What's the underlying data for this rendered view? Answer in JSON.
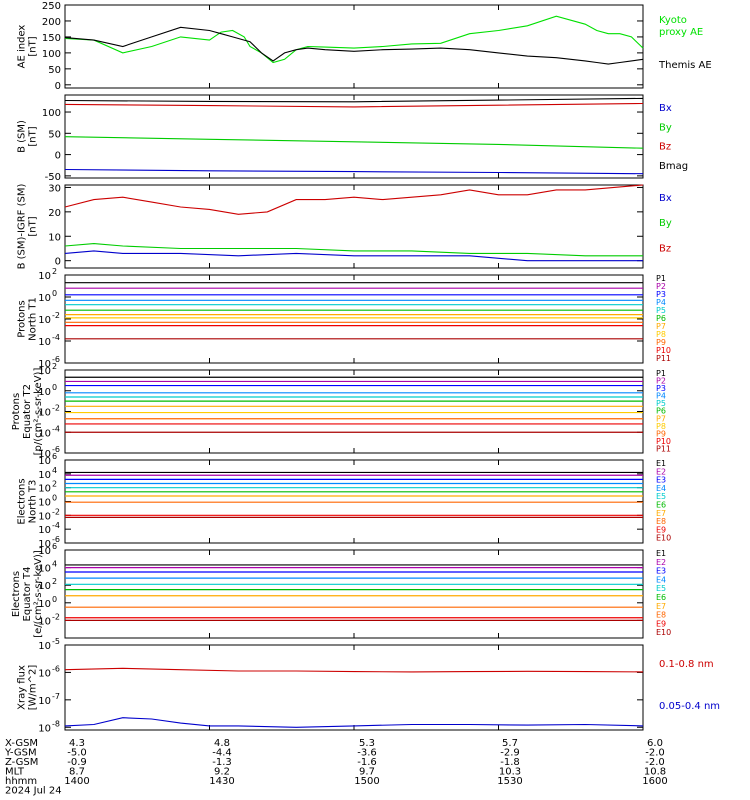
{
  "chart_data": [
    {
      "type": "line",
      "ylabel": [
        "AE index",
        "[nT]"
      ],
      "ylim": [
        -10,
        250
      ],
      "yticks": [
        0,
        50,
        100,
        150,
        200,
        250
      ],
      "tick_labels": [
        "0",
        "50",
        "100",
        "150",
        "200",
        "250"
      ],
      "legend": [
        {
          "text": "Kyoto",
          "color": "#00e000"
        },
        {
          "text": "proxy AE",
          "color": "#00e000"
        },
        {
          "text": "Themis AE",
          "color": "#000000"
        }
      ],
      "series": [
        {
          "name": "Kyoto proxy AE",
          "color": "#00e000",
          "x": [
            0,
            5,
            10,
            15,
            20,
            25,
            27,
            29,
            31,
            32,
            34,
            36,
            38,
            40,
            42,
            45,
            50,
            55,
            60,
            65,
            70,
            75,
            80,
            85,
            90,
            92,
            94,
            96,
            98,
            100
          ],
          "y": [
            145,
            140,
            100,
            120,
            150,
            140,
            165,
            170,
            150,
            120,
            100,
            70,
            80,
            110,
            120,
            118,
            115,
            120,
            128,
            130,
            160,
            170,
            185,
            215,
            190,
            170,
            160,
            160,
            150,
            115
          ]
        },
        {
          "name": "Themis AE",
          "color": "#000000",
          "x": [
            0,
            5,
            10,
            15,
            20,
            25,
            27,
            29,
            31,
            32,
            34,
            36,
            38,
            40,
            42,
            45,
            50,
            55,
            60,
            65,
            70,
            75,
            80,
            85,
            90,
            92,
            94,
            96,
            98,
            100
          ],
          "y": [
            148,
            140,
            120,
            150,
            180,
            170,
            160,
            150,
            140,
            135,
            100,
            75,
            100,
            110,
            115,
            110,
            105,
            110,
            112,
            115,
            110,
            100,
            90,
            85,
            75,
            70,
            65,
            70,
            75,
            80
          ]
        }
      ]
    },
    {
      "type": "line",
      "ylabel": [
        "B (SM)",
        "[nT]"
      ],
      "ylim": [
        -55,
        140
      ],
      "yticks": [
        -50,
        0,
        50,
        100
      ],
      "tick_labels": [
        "-50",
        "0",
        "50",
        "100"
      ],
      "legend": [
        {
          "text": "Bx",
          "color": "#0000cc"
        },
        {
          "text": "By",
          "color": "#00cc00"
        },
        {
          "text": "Bz",
          "color": "#cc0000"
        },
        {
          "text": "Bmag",
          "color": "#000000"
        }
      ],
      "series": [
        {
          "name": "Bx",
          "color": "#0000cc",
          "x": [
            0,
            25,
            50,
            75,
            100
          ],
          "y": [
            -35,
            -38,
            -40,
            -42,
            -45
          ]
        },
        {
          "name": "By",
          "color": "#00cc00",
          "x": [
            0,
            25,
            50,
            75,
            100
          ],
          "y": [
            42,
            36,
            30,
            24,
            15
          ]
        },
        {
          "name": "Bz",
          "color": "#cc0000",
          "x": [
            0,
            25,
            50,
            75,
            100
          ],
          "y": [
            118,
            115,
            112,
            116,
            120
          ]
        },
        {
          "name": "Bmag",
          "color": "#000000",
          "x": [
            0,
            25,
            50,
            75,
            100
          ],
          "y": [
            127,
            125,
            124,
            128,
            132
          ]
        }
      ]
    },
    {
      "type": "line",
      "ylabel": [
        "B (SM)-IGRF (SM)",
        "[nT]"
      ],
      "ylim": [
        -3,
        31
      ],
      "yticks": [
        0,
        10,
        20,
        30
      ],
      "tick_labels": [
        "0",
        "10",
        "20",
        "30"
      ],
      "legend": [
        {
          "text": "Bx",
          "color": "#0000cc"
        },
        {
          "text": "By",
          "color": "#00cc00"
        },
        {
          "text": "Bz",
          "color": "#cc0000"
        }
      ],
      "series": [
        {
          "name": "Bx",
          "color": "#0000cc",
          "x": [
            0,
            5,
            10,
            20,
            30,
            40,
            50,
            60,
            70,
            80,
            90,
            100
          ],
          "y": [
            3,
            4,
            3,
            3,
            2,
            3,
            2,
            2,
            2,
            0,
            0,
            0
          ]
        },
        {
          "name": "By",
          "color": "#00cc00",
          "x": [
            0,
            5,
            10,
            20,
            30,
            40,
            50,
            60,
            70,
            80,
            90,
            100
          ],
          "y": [
            6,
            7,
            6,
            5,
            5,
            5,
            4,
            4,
            3,
            3,
            2,
            2
          ]
        },
        {
          "name": "Bz",
          "color": "#cc0000",
          "x": [
            0,
            5,
            10,
            15,
            20,
            25,
            30,
            35,
            40,
            45,
            50,
            55,
            60,
            65,
            70,
            75,
            80,
            85,
            90,
            95,
            100
          ],
          "y": [
            22,
            25,
            26,
            24,
            22,
            21,
            19,
            20,
            25,
            25,
            26,
            25,
            26,
            27,
            29,
            27,
            27,
            29,
            29,
            30,
            31
          ]
        }
      ]
    },
    {
      "type": "line",
      "ylabel": [
        "Protons",
        "North T1"
      ],
      "ylog": true,
      "ylim": [
        -6,
        2
      ],
      "yticks": [
        -6,
        -4,
        -2,
        0,
        2
      ],
      "tick_labels": [
        "10",
        "10",
        "10",
        "10",
        "10"
      ],
      "tick_sups": [
        "-6",
        "-4",
        "-2",
        "0",
        "2"
      ],
      "legend": [
        "P1",
        "P2",
        "P3",
        "P4",
        "P5",
        "P6",
        "P7",
        "P8",
        "P9",
        "P10",
        "P11"
      ],
      "colors": [
        "#000000",
        "#aa00aa",
        "#0000ff",
        "#0088ff",
        "#00cccc",
        "#00bb00",
        "#ffaa00",
        "#ffcc00",
        "#ff6600",
        "#ee0000",
        "#aa0000"
      ],
      "levels": [
        1.3,
        0.8,
        0.2,
        -0.3,
        -0.7,
        -1.2,
        -1.6,
        -1.9,
        -2.3,
        -2.6,
        -3.8
      ]
    },
    {
      "type": "line",
      "ylabel": [
        "Protons",
        "Equator T2",
        "[p/(cm²-s-sr-keV)]"
      ],
      "ylog": true,
      "ylim": [
        -6,
        2
      ],
      "yticks": [
        -6,
        -4,
        -2,
        0,
        2
      ],
      "tick_labels": [
        "10",
        "10",
        "10",
        "10",
        "10"
      ],
      "tick_sups": [
        "-6",
        "-4",
        "-2",
        "0",
        "2"
      ],
      "legend": [
        "P1",
        "P2",
        "P3",
        "P4",
        "P5",
        "P6",
        "P7",
        "P8",
        "P9",
        "P10",
        "P11"
      ],
      "colors": [
        "#000000",
        "#aa00aa",
        "#0000ff",
        "#0088ff",
        "#00cccc",
        "#00bb00",
        "#ffaa00",
        "#ffcc00",
        "#ff6600",
        "#ee0000",
        "#aa0000"
      ],
      "levels": [
        1.3,
        0.9,
        0.5,
        -0.2,
        -0.6,
        -1.0,
        -1.5,
        -2.1,
        -2.7,
        -3.2,
        -4.0
      ]
    },
    {
      "type": "line",
      "ylabel": [
        "Electrons",
        "North T3"
      ],
      "ylog": true,
      "ylim": [
        -6,
        6
      ],
      "yticks": [
        -6,
        -4,
        -2,
        0,
        2,
        4,
        6
      ],
      "tick_labels": [
        "10",
        "10",
        "10",
        "10",
        "10",
        "10",
        "10"
      ],
      "tick_sups": [
        "-6",
        "-4",
        "-2",
        "0",
        "2",
        "4",
        "6"
      ],
      "legend": [
        "E1",
        "E2",
        "E3",
        "E4",
        "E5",
        "E6",
        "E7",
        "E8",
        "E9",
        "E10"
      ],
      "colors": [
        "#000000",
        "#aa00aa",
        "#0000ff",
        "#0088ff",
        "#00cccc",
        "#00bb00",
        "#ffaa00",
        "#ff6600",
        "#ee0000",
        "#aa0000"
      ],
      "levels": [
        4.2,
        3.8,
        3.2,
        2.6,
        2.0,
        1.4,
        0.8,
        -0.1,
        -2.0,
        -2.3
      ]
    },
    {
      "type": "line",
      "ylabel": [
        "Electrons",
        "Equator T4",
        "[e/(cm²-s-sr-keV)]"
      ],
      "ylog": true,
      "ylim": [
        -4,
        6
      ],
      "yticks": [
        -2,
        0,
        2,
        4,
        6
      ],
      "tick_labels": [
        "10",
        "10",
        "10",
        "10",
        "10"
      ],
      "tick_sups": [
        "-2",
        "0",
        "2",
        "4",
        "6"
      ],
      "legend": [
        "E1",
        "E2",
        "E3",
        "E4",
        "E5",
        "E6",
        "E7",
        "E8",
        "E9",
        "E10"
      ],
      "colors": [
        "#000000",
        "#aa00aa",
        "#0000ff",
        "#0088ff",
        "#00cccc",
        "#00bb00",
        "#ffaa00",
        "#ff6600",
        "#ee0000",
        "#aa0000"
      ],
      "levels": [
        4.3,
        4.0,
        3.5,
        2.8,
        2.1,
        1.5,
        0.8,
        -0.5,
        -1.7,
        -2.0
      ]
    },
    {
      "type": "line",
      "ylabel": [
        "Xray flux",
        "[W/m^2]"
      ],
      "ylog": true,
      "ylim": [
        -8.1,
        -5
      ],
      "yticks": [
        -8,
        -7,
        -6,
        -5
      ],
      "tick_labels": [
        "10",
        "10",
        "10",
        "10"
      ],
      "tick_sups": [
        "-8",
        "-7",
        "-6",
        "-5"
      ],
      "legend": [
        {
          "text": "0.1-0.8 nm",
          "color": "#cc0000"
        },
        {
          "text": "0.05-0.4 nm",
          "color": "#0000cc"
        }
      ],
      "series": [
        {
          "name": "0.1-0.8 nm",
          "color": "#cc0000",
          "x": [
            0,
            10,
            20,
            30,
            40,
            50,
            60,
            70,
            80,
            90,
            100
          ],
          "y": [
            -5.9,
            -5.85,
            -5.9,
            -5.95,
            -5.95,
            -5.97,
            -5.98,
            -5.97,
            -5.96,
            -5.97,
            -5.98
          ]
        },
        {
          "name": "0.05-0.4 nm",
          "color": "#0000cc",
          "x": [
            0,
            5,
            10,
            15,
            20,
            25,
            30,
            40,
            50,
            60,
            70,
            80,
            90,
            100
          ],
          "y": [
            -7.95,
            -7.9,
            -7.65,
            -7.7,
            -7.85,
            -7.95,
            -7.95,
            -8.0,
            -7.95,
            -7.9,
            -7.9,
            -7.92,
            -7.9,
            -7.95
          ]
        }
      ]
    }
  ],
  "footer": {
    "rows": [
      {
        "label": "X-GSM",
        "values": [
          "4.3",
          "4.8",
          "5.3",
          "5.7",
          "6.0"
        ]
      },
      {
        "label": "Y-GSM",
        "values": [
          "-5.0",
          "-4.4",
          "-3.6",
          "-2.9",
          "-2.0"
        ]
      },
      {
        "label": "Z-GSM",
        "values": [
          "-0.9",
          "-1.3",
          "-1.6",
          "-1.8",
          "-2.0"
        ]
      },
      {
        "label": "MLT",
        "values": [
          "8.7",
          "9.2",
          "9.7",
          "10.3",
          "10.8"
        ]
      },
      {
        "label": "hhmm",
        "values": [
          "1400",
          "1430",
          "1500",
          "1530",
          "1600"
        ]
      }
    ],
    "date": "2024 Jul 24"
  }
}
